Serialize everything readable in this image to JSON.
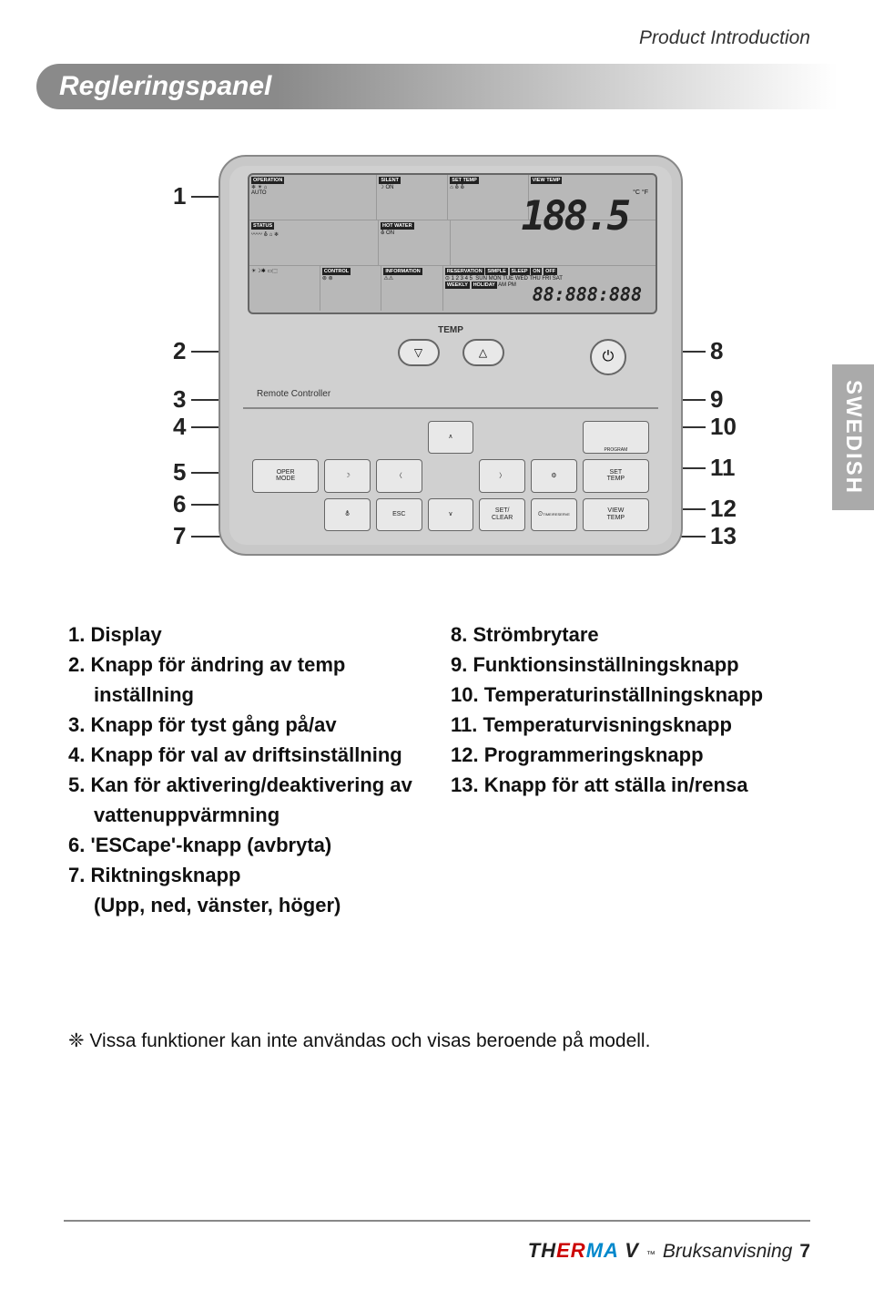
{
  "header": {
    "section": "Product Introduction"
  },
  "title": "Regleringspanel",
  "side_tab": "SWEDISH",
  "panel": {
    "lcd": {
      "labels": {
        "operation": "OPERATION",
        "silent": "SILENT",
        "set_temp": "SET TEMP",
        "view_temp": "VIEW TEMP",
        "status": "STATUS",
        "hot_water": "HOT WATER",
        "control": "CONTROL",
        "information": "INFORMATION",
        "reservation": "RESERVATION",
        "simple": "SIMPLE",
        "sleep": "SLEEP",
        "on": "ON",
        "off": "OFF",
        "weekly": "WEEKLY",
        "holiday": "HOLIDAY"
      },
      "days": "SUN MON TUE WED THU FRI SAT",
      "nums": "1 2 3 4 5",
      "big_value": "188.5",
      "units": "°C °F",
      "time_value": "88:888:888",
      "ampm": "AM PM",
      "auto": "AUTO",
      "on_small": "ON"
    },
    "temp_label": "TEMP",
    "remote_label": "Remote Controller",
    "buttons": {
      "oper_mode": "OPER\nMODE",
      "set_temp": "SET\nTEMP",
      "esc": "ESC",
      "set_clear": "SET/\nCLEAR",
      "view_temp": "VIEW\nTEMP",
      "time_reserve": "TIME/RESERVE",
      "program": "PROGRAM"
    }
  },
  "callouts_left": [
    "1",
    "2",
    "3",
    "4",
    "5",
    "6",
    "7"
  ],
  "callouts_right": [
    "8",
    "9",
    "10",
    "11",
    "12",
    "13"
  ],
  "list_left": [
    {
      "n": "1.",
      "t": "Display"
    },
    {
      "n": "2.",
      "t": "Knapp för ändring av temp"
    },
    {
      "n": "",
      "t": "inställning",
      "indent": true
    },
    {
      "n": "3.",
      "t": "Knapp för tyst gång på/av"
    },
    {
      "n": "4.",
      "t": "Knapp för val av driftsinställning"
    },
    {
      "n": "5.",
      "t": "Kan för aktivering/deaktivering av"
    },
    {
      "n": "",
      "t": "vattenuppvärmning",
      "indent": true
    },
    {
      "n": "6.",
      "t": "'ESCape'-knapp (avbryta)"
    },
    {
      "n": "7.",
      "t": "Riktningsknapp"
    },
    {
      "n": "",
      "t": "(Upp, ned, vänster, höger)",
      "indent": true
    }
  ],
  "list_right": [
    {
      "n": "8.",
      "t": "Strömbrytare"
    },
    {
      "n": "9.",
      "t": "Funktionsinställningsknapp"
    },
    {
      "n": "10.",
      "t": "Temperaturinställningsknapp"
    },
    {
      "n": "11.",
      "t": "Temperaturvisningsknapp"
    },
    {
      "n": "12.",
      "t": "Programmeringsknapp"
    },
    {
      "n": "13.",
      "t": "Knapp för att ställa in/rensa"
    }
  ],
  "footnote": "❈ Vissa funktioner kan inte användas och visas beroende på modell.",
  "footer": {
    "brand_th": "TH",
    "brand_er": "ER",
    "brand_ma": "MA",
    "brand_v": "V",
    "tm": "™",
    "doc": "Bruksanvisning",
    "page": "7"
  },
  "colors": {
    "bar_gray": "#8a8a8a",
    "panel_bg": "#d0d0d0",
    "lcd_bg": "#b8b8b8",
    "tab_bg": "#aaaaaa",
    "brand_red": "#cc0000",
    "brand_blue": "#0088cc"
  }
}
